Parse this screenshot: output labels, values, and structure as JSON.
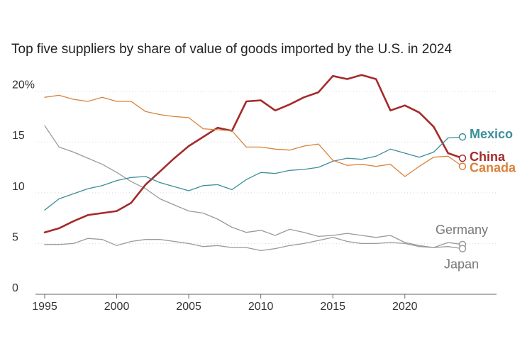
{
  "chart_data": {
    "type": "line",
    "title": "Top five suppliers by share of value of goods imported by the U.S. in 2024",
    "ylim": [
      0,
      22
    ],
    "y_ticks": [
      0,
      5,
      10,
      15,
      20
    ],
    "y_tick_labels": [
      "0",
      "5",
      "10",
      "15",
      "20%"
    ],
    "x_ticks": [
      1995,
      2000,
      2005,
      2010,
      2015,
      2020
    ],
    "x_tick_labels": [
      "1995",
      "2000",
      "2005",
      "2010",
      "2015",
      "2020"
    ],
    "x": [
      1995,
      1996,
      1997,
      1998,
      1999,
      2000,
      2001,
      2002,
      2003,
      2004,
      2005,
      2006,
      2007,
      2008,
      2009,
      2010,
      2011,
      2012,
      2013,
      2014,
      2015,
      2016,
      2017,
      2018,
      2019,
      2020,
      2021,
      2022,
      2023,
      2024
    ],
    "series": [
      {
        "name": "China",
        "label": "China",
        "color": "#a52a2a",
        "bold": true,
        "width": 2.6,
        "values": [
          6.1,
          6.5,
          7.2,
          7.8,
          8.0,
          8.2,
          9.0,
          10.8,
          12.1,
          13.4,
          14.6,
          15.5,
          16.4,
          16.1,
          19.0,
          19.1,
          18.1,
          18.7,
          19.4,
          19.9,
          21.5,
          21.2,
          21.6,
          21.2,
          18.1,
          18.6,
          17.9,
          16.5,
          13.9,
          13.4
        ],
        "label_dy": 4
      },
      {
        "name": "Mexico",
        "label": "Mexico",
        "color": "#3d8e9a",
        "bold": true,
        "width": 1.3,
        "values": [
          8.3,
          9.4,
          9.9,
          10.4,
          10.7,
          11.2,
          11.5,
          11.6,
          11.0,
          10.6,
          10.2,
          10.7,
          10.8,
          10.3,
          11.3,
          12.0,
          11.9,
          12.2,
          12.3,
          12.5,
          13.1,
          13.4,
          13.3,
          13.6,
          14.3,
          13.9,
          13.5,
          14.0,
          15.4,
          15.5
        ],
        "label_dy": 2
      },
      {
        "name": "Canada",
        "label": "Canada",
        "color": "#d9823a",
        "bold": true,
        "width": 1.3,
        "values": [
          19.4,
          19.6,
          19.2,
          19.0,
          19.4,
          19.0,
          19.0,
          18.0,
          17.7,
          17.5,
          17.4,
          16.3,
          16.2,
          16.1,
          14.5,
          14.5,
          14.3,
          14.2,
          14.6,
          14.8,
          13.2,
          12.7,
          12.8,
          12.6,
          12.8,
          11.6,
          12.6,
          13.5,
          13.6,
          12.6
        ],
        "label_dy": 8
      },
      {
        "name": "Germany",
        "label": "Germany",
        "color": "#9a9a9a",
        "bold": false,
        "width": 1.3,
        "values": [
          4.9,
          4.9,
          5.0,
          5.5,
          5.4,
          4.8,
          5.2,
          5.4,
          5.4,
          5.2,
          5.0,
          4.7,
          4.8,
          4.6,
          4.6,
          4.3,
          4.5,
          4.8,
          5.0,
          5.3,
          5.6,
          5.2,
          5.0,
          5.0,
          5.1,
          5.0,
          4.7,
          4.6,
          5.1,
          4.9
        ],
        "label_dx": -38,
        "label_dy": -15
      },
      {
        "name": "Japan",
        "label": "Japan",
        "color": "#9a9a9a",
        "bold": false,
        "width": 1.3,
        "values": [
          16.6,
          14.5,
          14.0,
          13.4,
          12.8,
          12.0,
          11.1,
          10.4,
          9.4,
          8.8,
          8.2,
          8.0,
          7.4,
          6.6,
          6.1,
          6.3,
          5.8,
          6.4,
          6.1,
          5.7,
          5.8,
          6.0,
          5.8,
          5.6,
          5.8,
          5.1,
          4.8,
          4.6,
          4.7,
          4.5
        ],
        "label_dx": -26,
        "label_dy": 28
      }
    ]
  }
}
